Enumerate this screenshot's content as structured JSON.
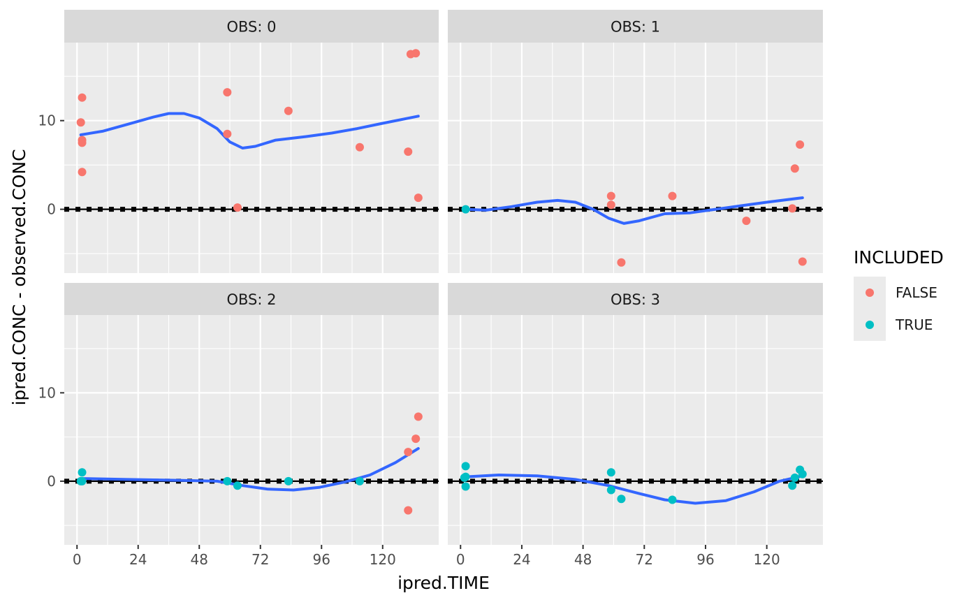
{
  "chart_data": {
    "type": "scatter",
    "facet_variable": "OBS",
    "xlabel": "ipred.TIME",
    "ylabel": "ipred.CONC - observed.CONC",
    "x_ticks": [
      0,
      24,
      48,
      72,
      96,
      120
    ],
    "x_tick_labels": [
      "0",
      "24",
      "48",
      "72",
      "96",
      "120"
    ],
    "xlim": [
      -5,
      142
    ],
    "y_ticks": [
      0,
      10
    ],
    "y_tick_labels": [
      "0",
      "10"
    ],
    "ylim": [
      -7.2,
      18.8
    ],
    "grid": true,
    "legend": {
      "title": "INCLUDED",
      "position": "right",
      "entries": [
        {
          "label": "FALSE",
          "color": "#F8766D"
        },
        {
          "label": "TRUE",
          "color": "#00BFC4"
        }
      ]
    },
    "reference_line": {
      "y": 0,
      "style": "dashed",
      "color": "#000000"
    },
    "smooth_color": "#3366FF",
    "panels": [
      {
        "strip": "OBS: 0",
        "points": [
          {
            "x": 2,
            "y": 12.6,
            "included": "FALSE"
          },
          {
            "x": 1.5,
            "y": 9.8,
            "included": "FALSE"
          },
          {
            "x": 2,
            "y": 7.8,
            "included": "FALSE"
          },
          {
            "x": 2,
            "y": 7.5,
            "included": "FALSE"
          },
          {
            "x": 2,
            "y": 4.2,
            "included": "FALSE"
          },
          {
            "x": 59,
            "y": 13.2,
            "included": "FALSE"
          },
          {
            "x": 59,
            "y": 8.5,
            "included": "FALSE"
          },
          {
            "x": 63,
            "y": 0.2,
            "included": "FALSE"
          },
          {
            "x": 83,
            "y": 11.1,
            "included": "FALSE"
          },
          {
            "x": 111,
            "y": 7.0,
            "included": "FALSE"
          },
          {
            "x": 130,
            "y": 6.5,
            "included": "FALSE"
          },
          {
            "x": 131,
            "y": 17.5,
            "included": "FALSE"
          },
          {
            "x": 133,
            "y": 17.6,
            "included": "FALSE"
          },
          {
            "x": 134,
            "y": 1.3,
            "included": "FALSE"
          }
        ],
        "smooth": [
          [
            1.5,
            8.4
          ],
          [
            10,
            8.8
          ],
          [
            20,
            9.6
          ],
          [
            30,
            10.4
          ],
          [
            36,
            10.8
          ],
          [
            42,
            10.8
          ],
          [
            48,
            10.3
          ],
          [
            55,
            9.1
          ],
          [
            60,
            7.6
          ],
          [
            65,
            6.9
          ],
          [
            70,
            7.1
          ],
          [
            78,
            7.8
          ],
          [
            90,
            8.2
          ],
          [
            100,
            8.6
          ],
          [
            110,
            9.1
          ],
          [
            120,
            9.7
          ],
          [
            134,
            10.5
          ]
        ]
      },
      {
        "strip": "OBS: 1",
        "points": [
          {
            "x": 2,
            "y": 0.0,
            "included": "TRUE"
          },
          {
            "x": 59,
            "y": 1.5,
            "included": "FALSE"
          },
          {
            "x": 59,
            "y": 0.5,
            "included": "FALSE"
          },
          {
            "x": 63,
            "y": -6.0,
            "included": "FALSE"
          },
          {
            "x": 83,
            "y": 1.5,
            "included": "FALSE"
          },
          {
            "x": 112,
            "y": -1.3,
            "included": "FALSE"
          },
          {
            "x": 130,
            "y": 0.1,
            "included": "FALSE"
          },
          {
            "x": 131,
            "y": 4.6,
            "included": "FALSE"
          },
          {
            "x": 133,
            "y": 7.3,
            "included": "FALSE"
          },
          {
            "x": 134,
            "y": -5.9,
            "included": "FALSE"
          }
        ],
        "smooth": [
          [
            2,
            0.0
          ],
          [
            10,
            -0.1
          ],
          [
            20,
            0.3
          ],
          [
            30,
            0.8
          ],
          [
            38,
            1.0
          ],
          [
            45,
            0.8
          ],
          [
            52,
            0.0
          ],
          [
            58,
            -1.0
          ],
          [
            64,
            -1.6
          ],
          [
            70,
            -1.3
          ],
          [
            80,
            -0.5
          ],
          [
            90,
            -0.4
          ],
          [
            100,
            0.0
          ],
          [
            110,
            0.4
          ],
          [
            120,
            0.8
          ],
          [
            134,
            1.3
          ]
        ]
      },
      {
        "strip": "OBS: 2",
        "points": [
          {
            "x": 2,
            "y": 1.0,
            "included": "TRUE"
          },
          {
            "x": 2,
            "y": 0.0,
            "included": "TRUE"
          },
          {
            "x": 1.5,
            "y": 0.0,
            "included": "TRUE"
          },
          {
            "x": 59,
            "y": 0.0,
            "included": "TRUE"
          },
          {
            "x": 63,
            "y": -0.5,
            "included": "TRUE"
          },
          {
            "x": 83,
            "y": 0.0,
            "included": "TRUE"
          },
          {
            "x": 111,
            "y": 0.0,
            "included": "TRUE"
          },
          {
            "x": 130,
            "y": 3.3,
            "included": "FALSE"
          },
          {
            "x": 130,
            "y": -3.3,
            "included": "FALSE"
          },
          {
            "x": 133,
            "y": 4.8,
            "included": "FALSE"
          },
          {
            "x": 134,
            "y": 7.3,
            "included": "FALSE"
          }
        ],
        "smooth": [
          [
            2,
            0.3
          ],
          [
            20,
            0.2
          ],
          [
            40,
            0.1
          ],
          [
            55,
            0.0
          ],
          [
            65,
            -0.5
          ],
          [
            75,
            -0.9
          ],
          [
            85,
            -1.0
          ],
          [
            95,
            -0.7
          ],
          [
            105,
            -0.1
          ],
          [
            115,
            0.7
          ],
          [
            125,
            2.1
          ],
          [
            134,
            3.7
          ]
        ]
      },
      {
        "strip": "OBS: 3",
        "points": [
          {
            "x": 2,
            "y": 1.7,
            "included": "TRUE"
          },
          {
            "x": 2,
            "y": 0.5,
            "included": "TRUE"
          },
          {
            "x": 1.5,
            "y": 0.4,
            "included": "TRUE"
          },
          {
            "x": 2,
            "y": -0.6,
            "included": "TRUE"
          },
          {
            "x": 59,
            "y": 1.0,
            "included": "TRUE"
          },
          {
            "x": 59,
            "y": -1.0,
            "included": "TRUE"
          },
          {
            "x": 63,
            "y": -2.0,
            "included": "TRUE"
          },
          {
            "x": 83,
            "y": -2.1,
            "included": "TRUE"
          },
          {
            "x": 130,
            "y": -0.5,
            "included": "TRUE"
          },
          {
            "x": 131,
            "y": 0.4,
            "included": "TRUE"
          },
          {
            "x": 133,
            "y": 1.3,
            "included": "TRUE"
          },
          {
            "x": 134,
            "y": 0.8,
            "included": "TRUE"
          }
        ],
        "smooth": [
          [
            2,
            0.5
          ],
          [
            15,
            0.7
          ],
          [
            30,
            0.6
          ],
          [
            45,
            0.2
          ],
          [
            58,
            -0.5
          ],
          [
            70,
            -1.4
          ],
          [
            80,
            -2.1
          ],
          [
            92,
            -2.5
          ],
          [
            104,
            -2.2
          ],
          [
            115,
            -1.2
          ],
          [
            125,
            0.0
          ],
          [
            134,
            0.6
          ]
        ]
      }
    ]
  }
}
